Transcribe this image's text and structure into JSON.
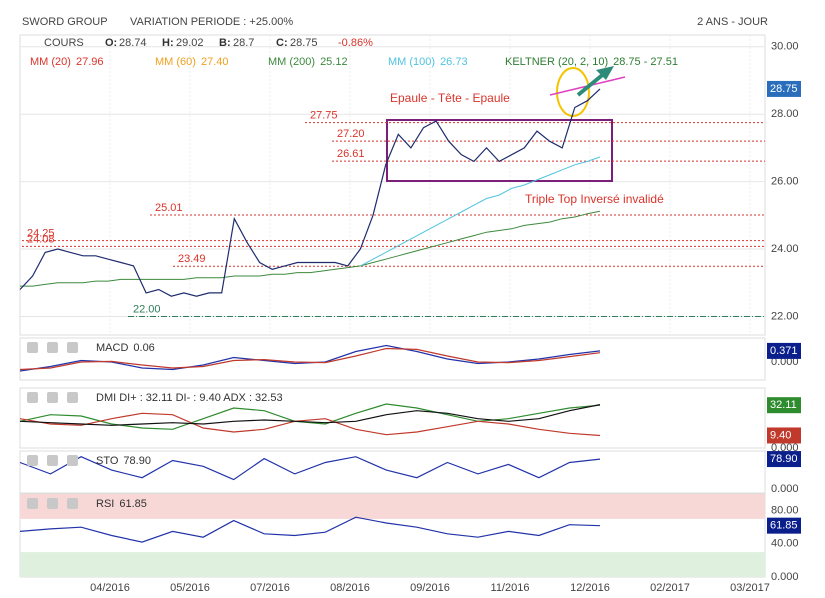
{
  "header": {
    "name": "SWORD GROUP",
    "variation": "VARIATION PERIODE : +25.00%",
    "period": "2 ANS - JOUR"
  },
  "x_axis": {
    "labels": [
      "04/2016",
      "05/2016",
      "07/2016",
      "08/2016",
      "09/2016",
      "11/2016",
      "12/2016",
      "02/2017",
      "03/2017"
    ]
  },
  "chart_data": [
    {
      "type": "line",
      "quote": [
        {
          "label": "O:",
          "value": "28.74"
        },
        {
          "label": "H:",
          "value": "29.02"
        },
        {
          "label": "B:",
          "value": "28.7"
        },
        {
          "label": "C:",
          "value": "28.75"
        }
      ],
      "change": "-0.86%",
      "last_badge": "28.75",
      "ylim": [
        21.45,
        30.35
      ],
      "yticks": [
        {
          "value": 30,
          "label": "30.00"
        },
        {
          "value": 28,
          "label": "28.00"
        },
        {
          "value": 26,
          "label": "26.00"
        },
        {
          "value": 24,
          "label": "24.00"
        },
        {
          "value": 22,
          "label": "22.00"
        }
      ],
      "grid": true,
      "series": [
        {
          "name": "COURS",
          "color": "#1f2d6e",
          "values": [
            22.8,
            23.2,
            23.9,
            24.0,
            23.9,
            23.8,
            23.8,
            23.7,
            23.6,
            23.5,
            22.7,
            22.8,
            22.6,
            22.7,
            22.6,
            22.7,
            22.7,
            24.9,
            24.2,
            23.6,
            23.4,
            23.5,
            23.6,
            23.6,
            23.6,
            23.6,
            23.5,
            24.0,
            25.0,
            26.5,
            27.4,
            27.0,
            27.6,
            27.8,
            27.2,
            26.8,
            26.6,
            27.0,
            26.6,
            26.8,
            27.0,
            27.5,
            27.2,
            27.0,
            28.2,
            28.4,
            28.75
          ]
        }
      ],
      "indicators": [
        {
          "name": "MM (20)",
          "value": "27.96",
          "color": "#d9342b"
        },
        {
          "name": "MM (60)",
          "value": "27.40",
          "color": "#f0a020"
        },
        {
          "name": "MM (200)",
          "value": "25.12",
          "color": "#3d8a3d",
          "values": [
            22.9,
            22.9,
            22.95,
            23.0,
            23.0,
            23.0,
            23.05,
            23.05,
            23.1,
            23.1,
            23.1,
            23.1,
            23.1,
            23.1,
            23.15,
            23.15,
            23.15,
            23.2,
            23.2,
            23.2,
            23.25,
            23.25,
            23.3,
            23.3,
            23.35,
            23.4,
            23.45,
            23.5,
            23.6,
            23.7,
            23.8,
            23.9,
            24.0,
            24.1,
            24.2,
            24.3,
            24.4,
            24.5,
            24.55,
            24.6,
            24.7,
            24.75,
            24.8,
            24.9,
            24.95,
            25.05,
            25.12
          ]
        },
        {
          "name": "MM (100)",
          "value": "26.73",
          "color": "#4fc3e0",
          "values": [
            null,
            null,
            null,
            null,
            null,
            null,
            null,
            null,
            null,
            null,
            null,
            null,
            null,
            null,
            null,
            null,
            null,
            null,
            null,
            null,
            null,
            null,
            null,
            null,
            null,
            null,
            null,
            23.5,
            23.7,
            23.9,
            24.1,
            24.3,
            24.5,
            24.7,
            24.9,
            25.1,
            25.3,
            25.5,
            25.6,
            25.8,
            25.9,
            26.05,
            26.2,
            26.35,
            26.5,
            26.6,
            26.73
          ]
        },
        {
          "name": "KELTNER (20, 2, 10)",
          "value": "28.75 - 27.51",
          "color": "#2e7d32"
        }
      ],
      "levels": [
        27.75,
        {
          "value": 27.2,
          "label": "27.20"
        },
        26.61,
        25.01,
        24.25,
        24.08,
        23.49,
        {
          "value": 22,
          "label": "22.00"
        }
      ],
      "annotations": [
        "Epaule - Tête - Epaule",
        "Triple Top Inversé invalidé"
      ]
    },
    {
      "type": "line",
      "title": "MACD",
      "title_value": "0.06",
      "ylim": [
        -0.6,
        0.8
      ],
      "yticks": [
        {
          "value": 0,
          "label": "0.000"
        }
      ],
      "badges": [
        {
          "text": "0.371",
          "color": "#0a1e8c"
        }
      ],
      "series": [
        {
          "color": "#2233aa",
          "values": [
            -0.3,
            -0.15,
            0.05,
            0.0,
            -0.2,
            -0.25,
            -0.1,
            0.15,
            0.05,
            -0.05,
            0.0,
            0.35,
            0.55,
            0.35,
            0.1,
            -0.05,
            0.0,
            0.1,
            0.25,
            0.37
          ]
        },
        {
          "color": "#c0392b",
          "values": [
            -0.25,
            -0.2,
            0.0,
            0.02,
            -0.1,
            -0.2,
            -0.15,
            0.05,
            0.08,
            0.0,
            -0.02,
            0.2,
            0.45,
            0.42,
            0.2,
            0.0,
            -0.02,
            0.05,
            0.18,
            0.31
          ]
        }
      ]
    },
    {
      "type": "line",
      "title": "DMI DI+ : 32.11 DI- : 9.40 ADX : 32.53",
      "ylim": [
        0,
        45
      ],
      "yticks": [
        {
          "value": 0,
          "label": "0.000"
        }
      ],
      "badges": [
        {
          "text": "32.11",
          "color": "#2e8b2e"
        },
        {
          "text": "9.40",
          "color": "#c0392b"
        }
      ],
      "series": [
        {
          "color": "#2e8b2e",
          "values": [
            20,
            25,
            24,
            18,
            15,
            14,
            22,
            30,
            28,
            20,
            18,
            26,
            33,
            30,
            25,
            20,
            22,
            26,
            30,
            32.11
          ]
        },
        {
          "color": "#c0392b",
          "values": [
            22,
            18,
            17,
            22,
            26,
            25,
            15,
            12,
            14,
            20,
            22,
            14,
            10,
            12,
            16,
            20,
            18,
            14,
            11,
            9.4
          ]
        },
        {
          "color": "#111111",
          "values": [
            20,
            19,
            18,
            17,
            18,
            19,
            18,
            20,
            21,
            20,
            19,
            20,
            25,
            28,
            26,
            22,
            20,
            22,
            28,
            32.53
          ]
        }
      ]
    },
    {
      "type": "line",
      "title": "STO",
      "title_value": "78.90",
      "ylim": [
        -10,
        100
      ],
      "yticks": [
        {
          "value": 0,
          "label": "0.000"
        }
      ],
      "badges": [
        {
          "text": "78.90",
          "color": "#0a1e8c"
        }
      ],
      "series": [
        {
          "color": "#2233aa",
          "values": [
            70,
            40,
            85,
            50,
            30,
            75,
            60,
            25,
            80,
            40,
            70,
            85,
            50,
            30,
            70,
            40,
            65,
            30,
            70,
            78.9
          ]
        }
      ]
    },
    {
      "type": "line",
      "title": "RSI",
      "title_value": "61.85",
      "ylim": [
        0,
        100
      ],
      "yticks": [
        {
          "value": 0,
          "label": "0.000"
        },
        {
          "value": 40,
          "label": "40.00"
        },
        {
          "value": 80,
          "label": "80.00"
        }
      ],
      "badges": [
        {
          "text": "61.85",
          "color": "#0a1e8c"
        }
      ],
      "zones": [
        {
          "from": 70,
          "to": 100,
          "color": "#f8d7d7"
        },
        {
          "from": 0,
          "to": 30,
          "color": "#dff0df"
        }
      ],
      "series": [
        {
          "color": "#2233aa",
          "values": [
            55,
            58,
            60,
            50,
            42,
            55,
            48,
            68,
            52,
            50,
            54,
            72,
            65,
            60,
            52,
            48,
            55,
            50,
            63,
            61.85
          ]
        }
      ]
    }
  ]
}
